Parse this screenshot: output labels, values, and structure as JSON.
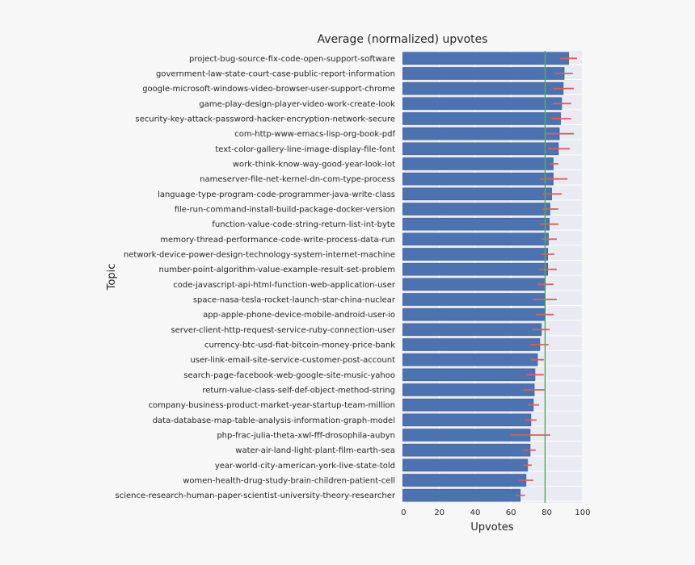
{
  "chart_data": {
    "type": "bar",
    "orientation": "horizontal",
    "title": "Average (normalized) upvotes",
    "xlabel": "Upvotes",
    "ylabel": "Topic",
    "xlim": [
      0,
      100
    ],
    "xticks": [
      "0",
      "20",
      "40",
      "60",
      "80",
      "100"
    ],
    "grid": true,
    "reference_line": 79.1,
    "colors": {
      "bar": "#4c72b0",
      "error": "#d65f5f",
      "reference": "#55a868",
      "background": "#eaeaf2",
      "figure": "#f7f7f7"
    },
    "categories": [
      "project-bug-source-fix-code-open-support-software",
      "government-law-state-court-case-public-report-information",
      "google-microsoft-windows-video-browser-user-support-chrome",
      "game-play-design-player-video-work-create-look",
      "security-key-attack-password-hacker-encryption-network-secure",
      "com-http-www-emacs-lisp-org-book-pdf",
      "text-color-gallery-line-image-display-file-font",
      "work-think-know-way-good-year-look-lot",
      "nameserver-file-net-kernel-dn-com-type-process",
      "language-type-program-code-programmer-java-write-class",
      "file-run-command-install-build-package-docker-version",
      "function-value-code-string-return-list-int-byte",
      "memory-thread-performance-code-write-process-data-run",
      "network-device-power-design-technology-system-internet-machine",
      "number-point-algorithm-value-example-result-set-problem",
      "code-javascript-api-html-function-web-application-user",
      "space-nasa-tesla-rocket-launch-star-china-nuclear",
      "app-apple-phone-device-mobile-android-user-io",
      "server-client-http-request-service-ruby-connection-user",
      "currency-btc-usd-fiat-bitcoin-money-price-bank",
      "user-link-email-site-service-customer-post-account",
      "search-page-facebook-web-google-site-music-yahoo",
      "return-value-class-self-def-object-method-string",
      "company-business-product-market-year-startup-team-million",
      "data-database-map-table-analysis-information-graph-model",
      "php-frac-julia-theta-xwl-fff-drosophila-aubyn",
      "water-air-land-light-plant-film-earth-sea",
      "year-world-city-american-york-live-state-told",
      "women-health-drug-study-brain-children-patient-cell",
      "science-research-human-paper-scientist-university-theory-researcher"
    ],
    "values": [
      92.2,
      89.7,
      89.2,
      88.3,
      87.7,
      87.0,
      86.5,
      83.6,
      83.6,
      82.7,
      81.8,
      81.4,
      80.9,
      80.5,
      80.5,
      79.3,
      78.8,
      78.8,
      77.0,
      76.1,
      74.8,
      73.4,
      73.0,
      72.5,
      71.1,
      70.7,
      70.7,
      69.3,
      68.4,
      65.2
    ],
    "error_low": [
      87.5,
      84.8,
      83.3,
      83.3,
      82.4,
      78.5,
      80.6,
      81.5,
      76.1,
      77.9,
      77.6,
      76.1,
      77.0,
      77.0,
      75.7,
      74.8,
      72.0,
      73.8,
      72.0,
      70.7,
      71.1,
      68.4,
      67.0,
      69.3,
      67.5,
      59.9,
      67.0,
      67.0,
      64.4,
      62.5
    ],
    "error_high": [
      96.9,
      94.6,
      95.1,
      93.7,
      93.7,
      95.1,
      92.8,
      86.5,
      91.5,
      88.3,
      86.5,
      86.5,
      85.6,
      84.2,
      85.6,
      83.8,
      85.6,
      83.8,
      81.5,
      81.0,
      78.3,
      78.3,
      78.8,
      75.7,
      74.3,
      81.9,
      73.8,
      71.6,
      72.5,
      67.9
    ]
  }
}
